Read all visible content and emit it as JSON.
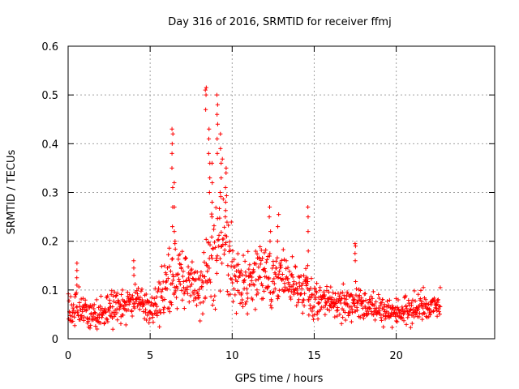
{
  "chart_data": {
    "type": "scatter",
    "title": "Day 316 of 2016, SRMTID for receiver ffmj",
    "xlabel": "GPS time / hours",
    "ylabel": "SRMTID / TECUs",
    "xlim": [
      0,
      26
    ],
    "ylim": [
      0,
      0.6
    ],
    "x_ticks": [
      0,
      5,
      10,
      15,
      20
    ],
    "y_ticks": [
      0,
      0.1,
      0.2,
      0.3,
      0.4,
      0.5,
      0.6
    ],
    "x_tick_labels": [
      "0",
      "5",
      "10",
      "15",
      "20"
    ],
    "y_tick_labels": [
      "0",
      "0.1",
      "0.2",
      "0.3",
      "0.4",
      "0.5",
      "0.6"
    ],
    "grid": true,
    "marker": "+",
    "series_color": "#ff0000",
    "data_range_hours": [
      0,
      22.7
    ],
    "profile": {
      "hours": [
        0,
        0.5,
        1,
        1.5,
        2,
        2.5,
        3,
        3.5,
        4,
        4.5,
        5,
        5.5,
        6,
        6.5,
        7,
        7.5,
        8,
        8.5,
        9,
        9.5,
        10,
        10.5,
        11,
        11.5,
        12,
        12.5,
        13,
        13.5,
        14,
        14.5,
        15,
        15.5,
        16,
        16.5,
        17,
        17.5,
        18,
        18.5,
        19,
        19.5,
        20,
        20.5,
        21,
        21.5,
        22,
        22.5
      ],
      "median": [
        0.06,
        0.065,
        0.055,
        0.045,
        0.05,
        0.065,
        0.06,
        0.065,
        0.075,
        0.07,
        0.06,
        0.075,
        0.1,
        0.13,
        0.12,
        0.1,
        0.11,
        0.14,
        0.19,
        0.22,
        0.14,
        0.11,
        0.12,
        0.13,
        0.13,
        0.12,
        0.12,
        0.11,
        0.1,
        0.09,
        0.085,
        0.08,
        0.075,
        0.07,
        0.07,
        0.075,
        0.065,
        0.06,
        0.06,
        0.06,
        0.055,
        0.055,
        0.06,
        0.065,
        0.065,
        0.07
      ],
      "spread": [
        0.025,
        0.03,
        0.025,
        0.02,
        0.025,
        0.03,
        0.025,
        0.025,
        0.03,
        0.03,
        0.025,
        0.035,
        0.05,
        0.06,
        0.05,
        0.04,
        0.05,
        0.06,
        0.1,
        0.1,
        0.05,
        0.05,
        0.05,
        0.05,
        0.05,
        0.05,
        0.045,
        0.04,
        0.035,
        0.03,
        0.03,
        0.025,
        0.025,
        0.025,
        0.025,
        0.025,
        0.025,
        0.022,
        0.022,
        0.022,
        0.022,
        0.022,
        0.025,
        0.025,
        0.025,
        0.025
      ]
    },
    "spikes": [
      {
        "x": 0.5,
        "values": [
          0.11,
          0.125,
          0.14,
          0.155
        ]
      },
      {
        "x": 4.0,
        "values": [
          0.13,
          0.145,
          0.16
        ]
      },
      {
        "x": 6.35,
        "values": [
          0.23,
          0.27,
          0.31,
          0.35,
          0.38,
          0.4,
          0.42,
          0.43
        ]
      },
      {
        "x": 6.5,
        "values": [
          0.2,
          0.22,
          0.27,
          0.32
        ]
      },
      {
        "x": 8.4,
        "values": [
          0.47,
          0.5,
          0.51,
          0.515
        ]
      },
      {
        "x": 8.6,
        "values": [
          0.3,
          0.33,
          0.36,
          0.38,
          0.41,
          0.43
        ]
      },
      {
        "x": 8.8,
        "values": [
          0.25,
          0.28,
          0.32,
          0.36
        ]
      },
      {
        "x": 9.1,
        "values": [
          0.38,
          0.41,
          0.44,
          0.46,
          0.48,
          0.5
        ]
      },
      {
        "x": 9.3,
        "values": [
          0.3,
          0.33,
          0.36,
          0.39,
          0.42
        ]
      },
      {
        "x": 9.6,
        "values": [
          0.25,
          0.28,
          0.31,
          0.34,
          0.35
        ]
      },
      {
        "x": 12.3,
        "values": [
          0.2,
          0.22,
          0.25,
          0.27
        ]
      },
      {
        "x": 12.8,
        "values": [
          0.2,
          0.23,
          0.255
        ]
      },
      {
        "x": 14.6,
        "values": [
          0.15,
          0.18,
          0.22,
          0.25,
          0.27
        ]
      },
      {
        "x": 17.5,
        "values": [
          0.16,
          0.175,
          0.19,
          0.195
        ]
      }
    ]
  }
}
